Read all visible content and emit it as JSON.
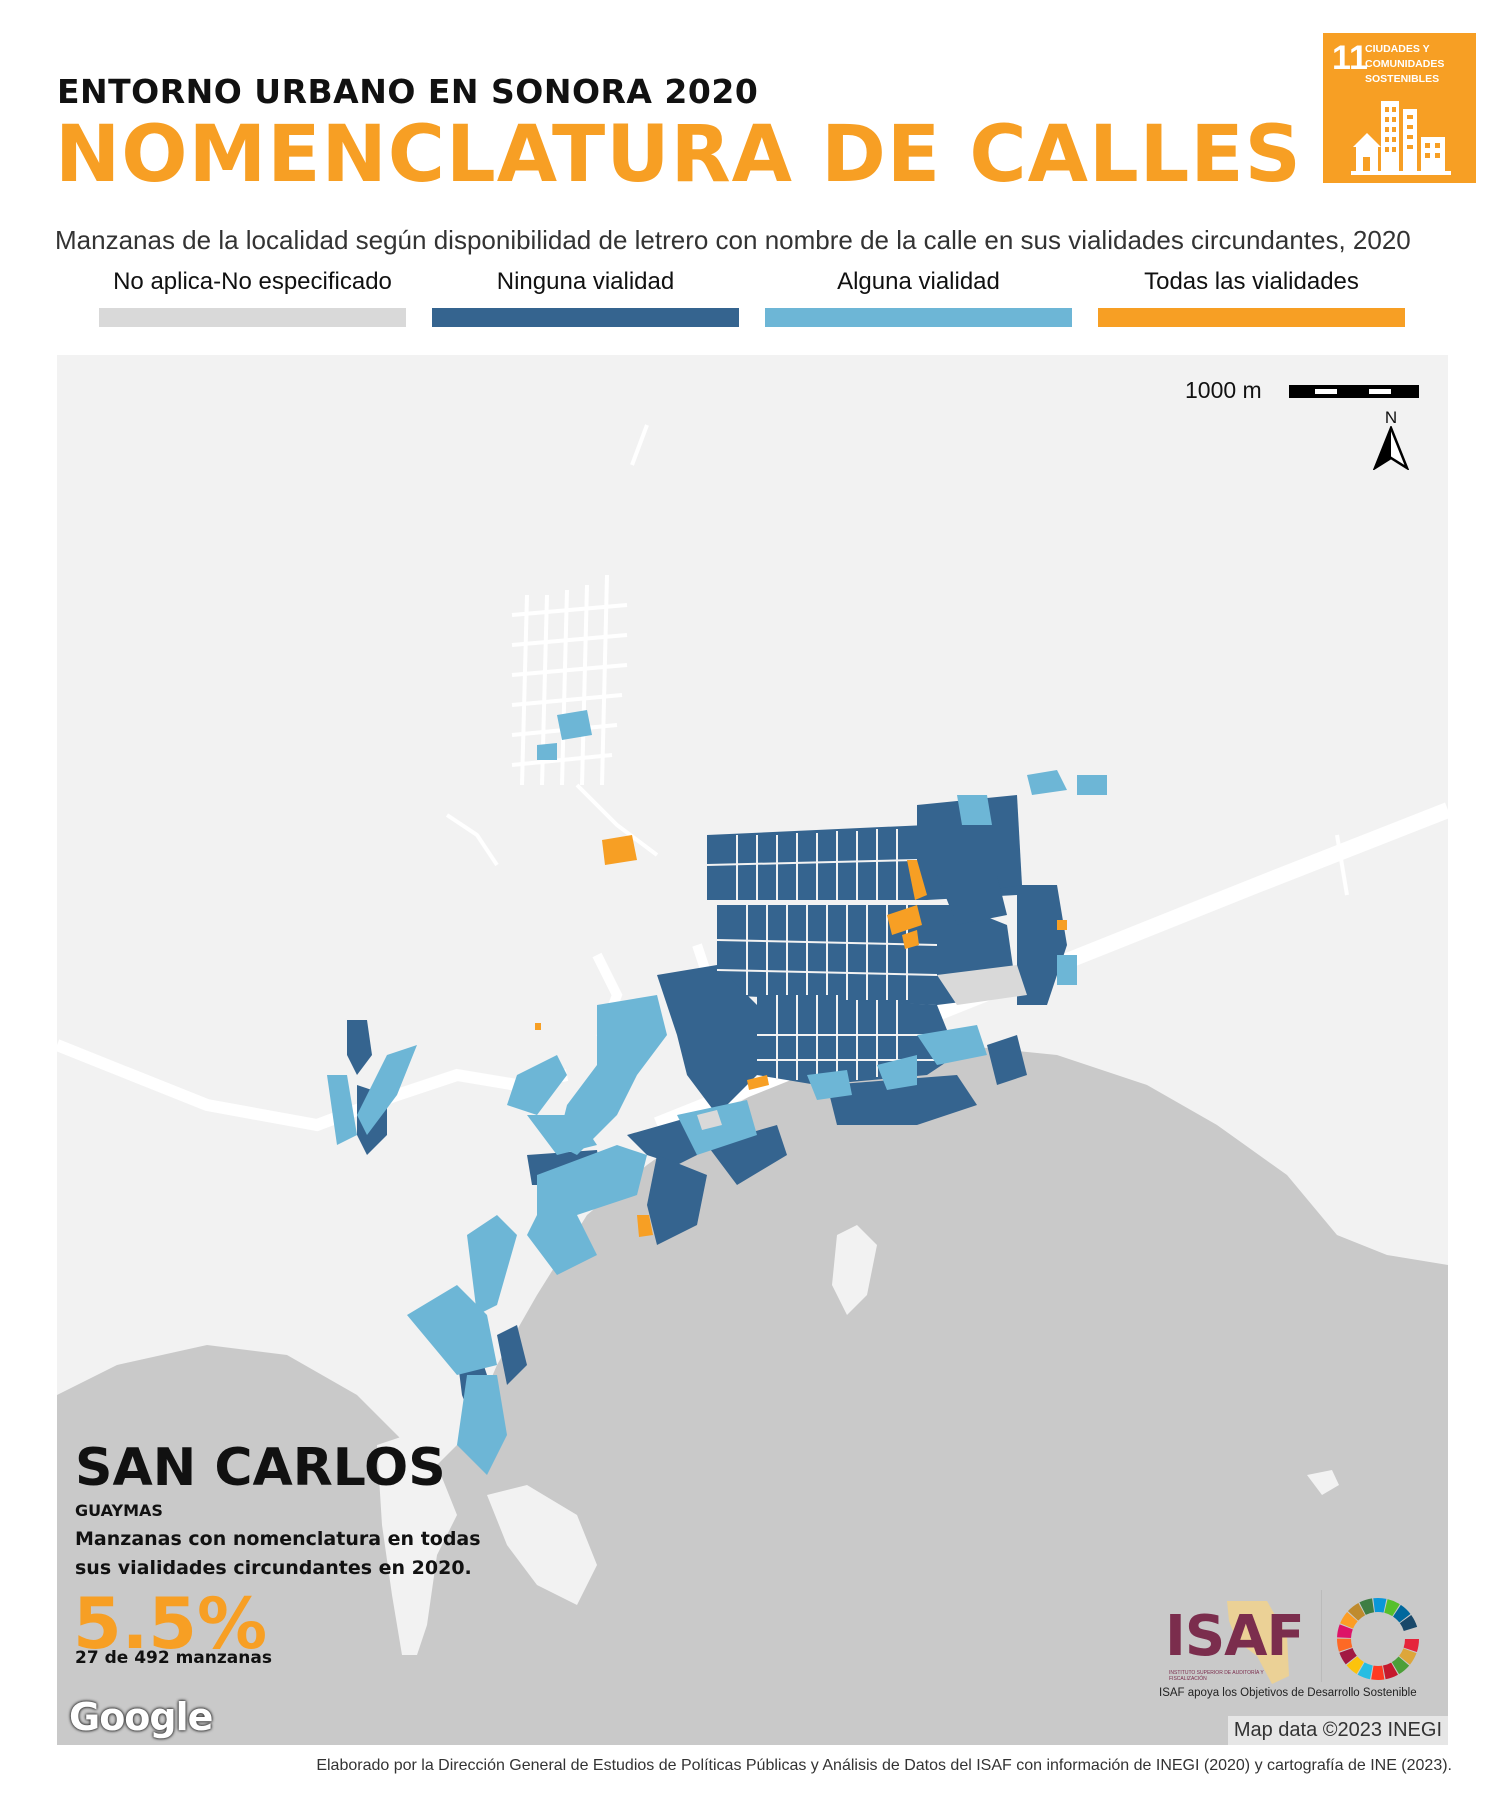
{
  "header": {
    "supertitle": "ENTORNO URBANO EN SONORA 2020",
    "title": "NOMENCLATURA DE CALLES",
    "subtitle": "Manzanas de la localidad según disponibilidad de letrero con nombre de la calle en sus vialidades circundantes, 2020"
  },
  "sdg": {
    "number": "11",
    "text_lines": [
      "CIUDADES Y",
      "COMUNIDADES",
      "SOSTENIBLES"
    ],
    "color": "#f79f24"
  },
  "legend": [
    {
      "label": "No aplica-No especificado",
      "color": "#d9d9d9"
    },
    {
      "label": "Ninguna vialidad",
      "color": "#35648f"
    },
    {
      "label": "Alguna vialidad",
      "color": "#6db6d6"
    },
    {
      "label": "Todas las vialidades",
      "color": "#f79f24"
    }
  ],
  "map": {
    "scale_label": "1000 m",
    "north_label": "N",
    "land_color": "#f2f2f2",
    "sea_color": "#c9c9c9",
    "road_color": "#ffffff",
    "attribution": "Map data ©2023 INEGI",
    "google_label": "Google"
  },
  "summary": {
    "place": "SAN CARLOS",
    "municipality": "GUAYMAS",
    "description": "Manzanas con nomenclatura en todas sus vialidades circundantes en 2020.",
    "percent": "5.5%",
    "count": "27 de 492 manzanas"
  },
  "isaf": {
    "logo": "ISAF",
    "small_text": "INSTITUTO SUPERIOR DE AUDITORÍA Y FISCALIZACIÓN",
    "caption": "ISAF apoya los Objetivos de Desarrollo Sostenible"
  },
  "footer": "Elaborado por la Dirección General de Estudios de Políticas Públicas y Análisis de Datos del ISAF con información de INEGI (2020) y cartografía de INE (2023)."
}
